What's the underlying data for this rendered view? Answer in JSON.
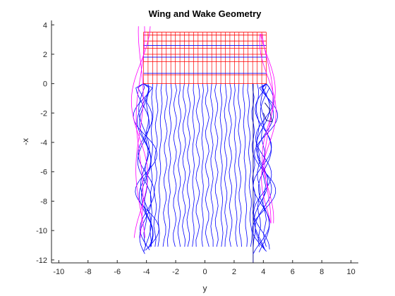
{
  "chart_data": {
    "type": "line",
    "title": "Wing and Wake Geometry",
    "xlabel": "y",
    "ylabel": "-x",
    "xlim": [
      -10.5,
      10.5
    ],
    "ylim": [
      -12.2,
      4.3
    ],
    "xticks": [
      -10,
      -8,
      -6,
      -4,
      -2,
      0,
      2,
      4,
      6,
      8,
      10
    ],
    "xtick_labels": [
      "-10",
      "-8",
      "-6",
      "-4",
      "-2",
      "0",
      "2",
      "4",
      "6",
      "8",
      "10"
    ],
    "yticks": [
      -12,
      -10,
      -8,
      -6,
      -4,
      -2,
      0,
      2,
      4
    ],
    "ytick_labels": [
      "-12",
      "-10",
      "-8",
      "-6",
      "-4",
      "-2",
      "0",
      "2",
      "4"
    ],
    "grid": false,
    "wing": {
      "span": [
        -4.2,
        4.2
      ],
      "leading_edge": 3.5,
      "trailing_edge": 0,
      "chord_lines_red": [
        0,
        0.6,
        1.5,
        2.0,
        2.4,
        2.9,
        3.3,
        3.5
      ],
      "chord_lines_blue": [
        0.7,
        1.8,
        2.6
      ],
      "stations": 28
    },
    "wake": {
      "stations": 28,
      "end_x": -11.1,
      "tip_wake_end_x": -11.6
    },
    "colors": {
      "wing_red": "#ff0000",
      "wing_blue": "#0000ff",
      "wake_blue": "#0000ff",
      "tip_vortex_magenta": "#ff00ff",
      "wake_dark": "#000080",
      "axis": "#262626"
    }
  }
}
